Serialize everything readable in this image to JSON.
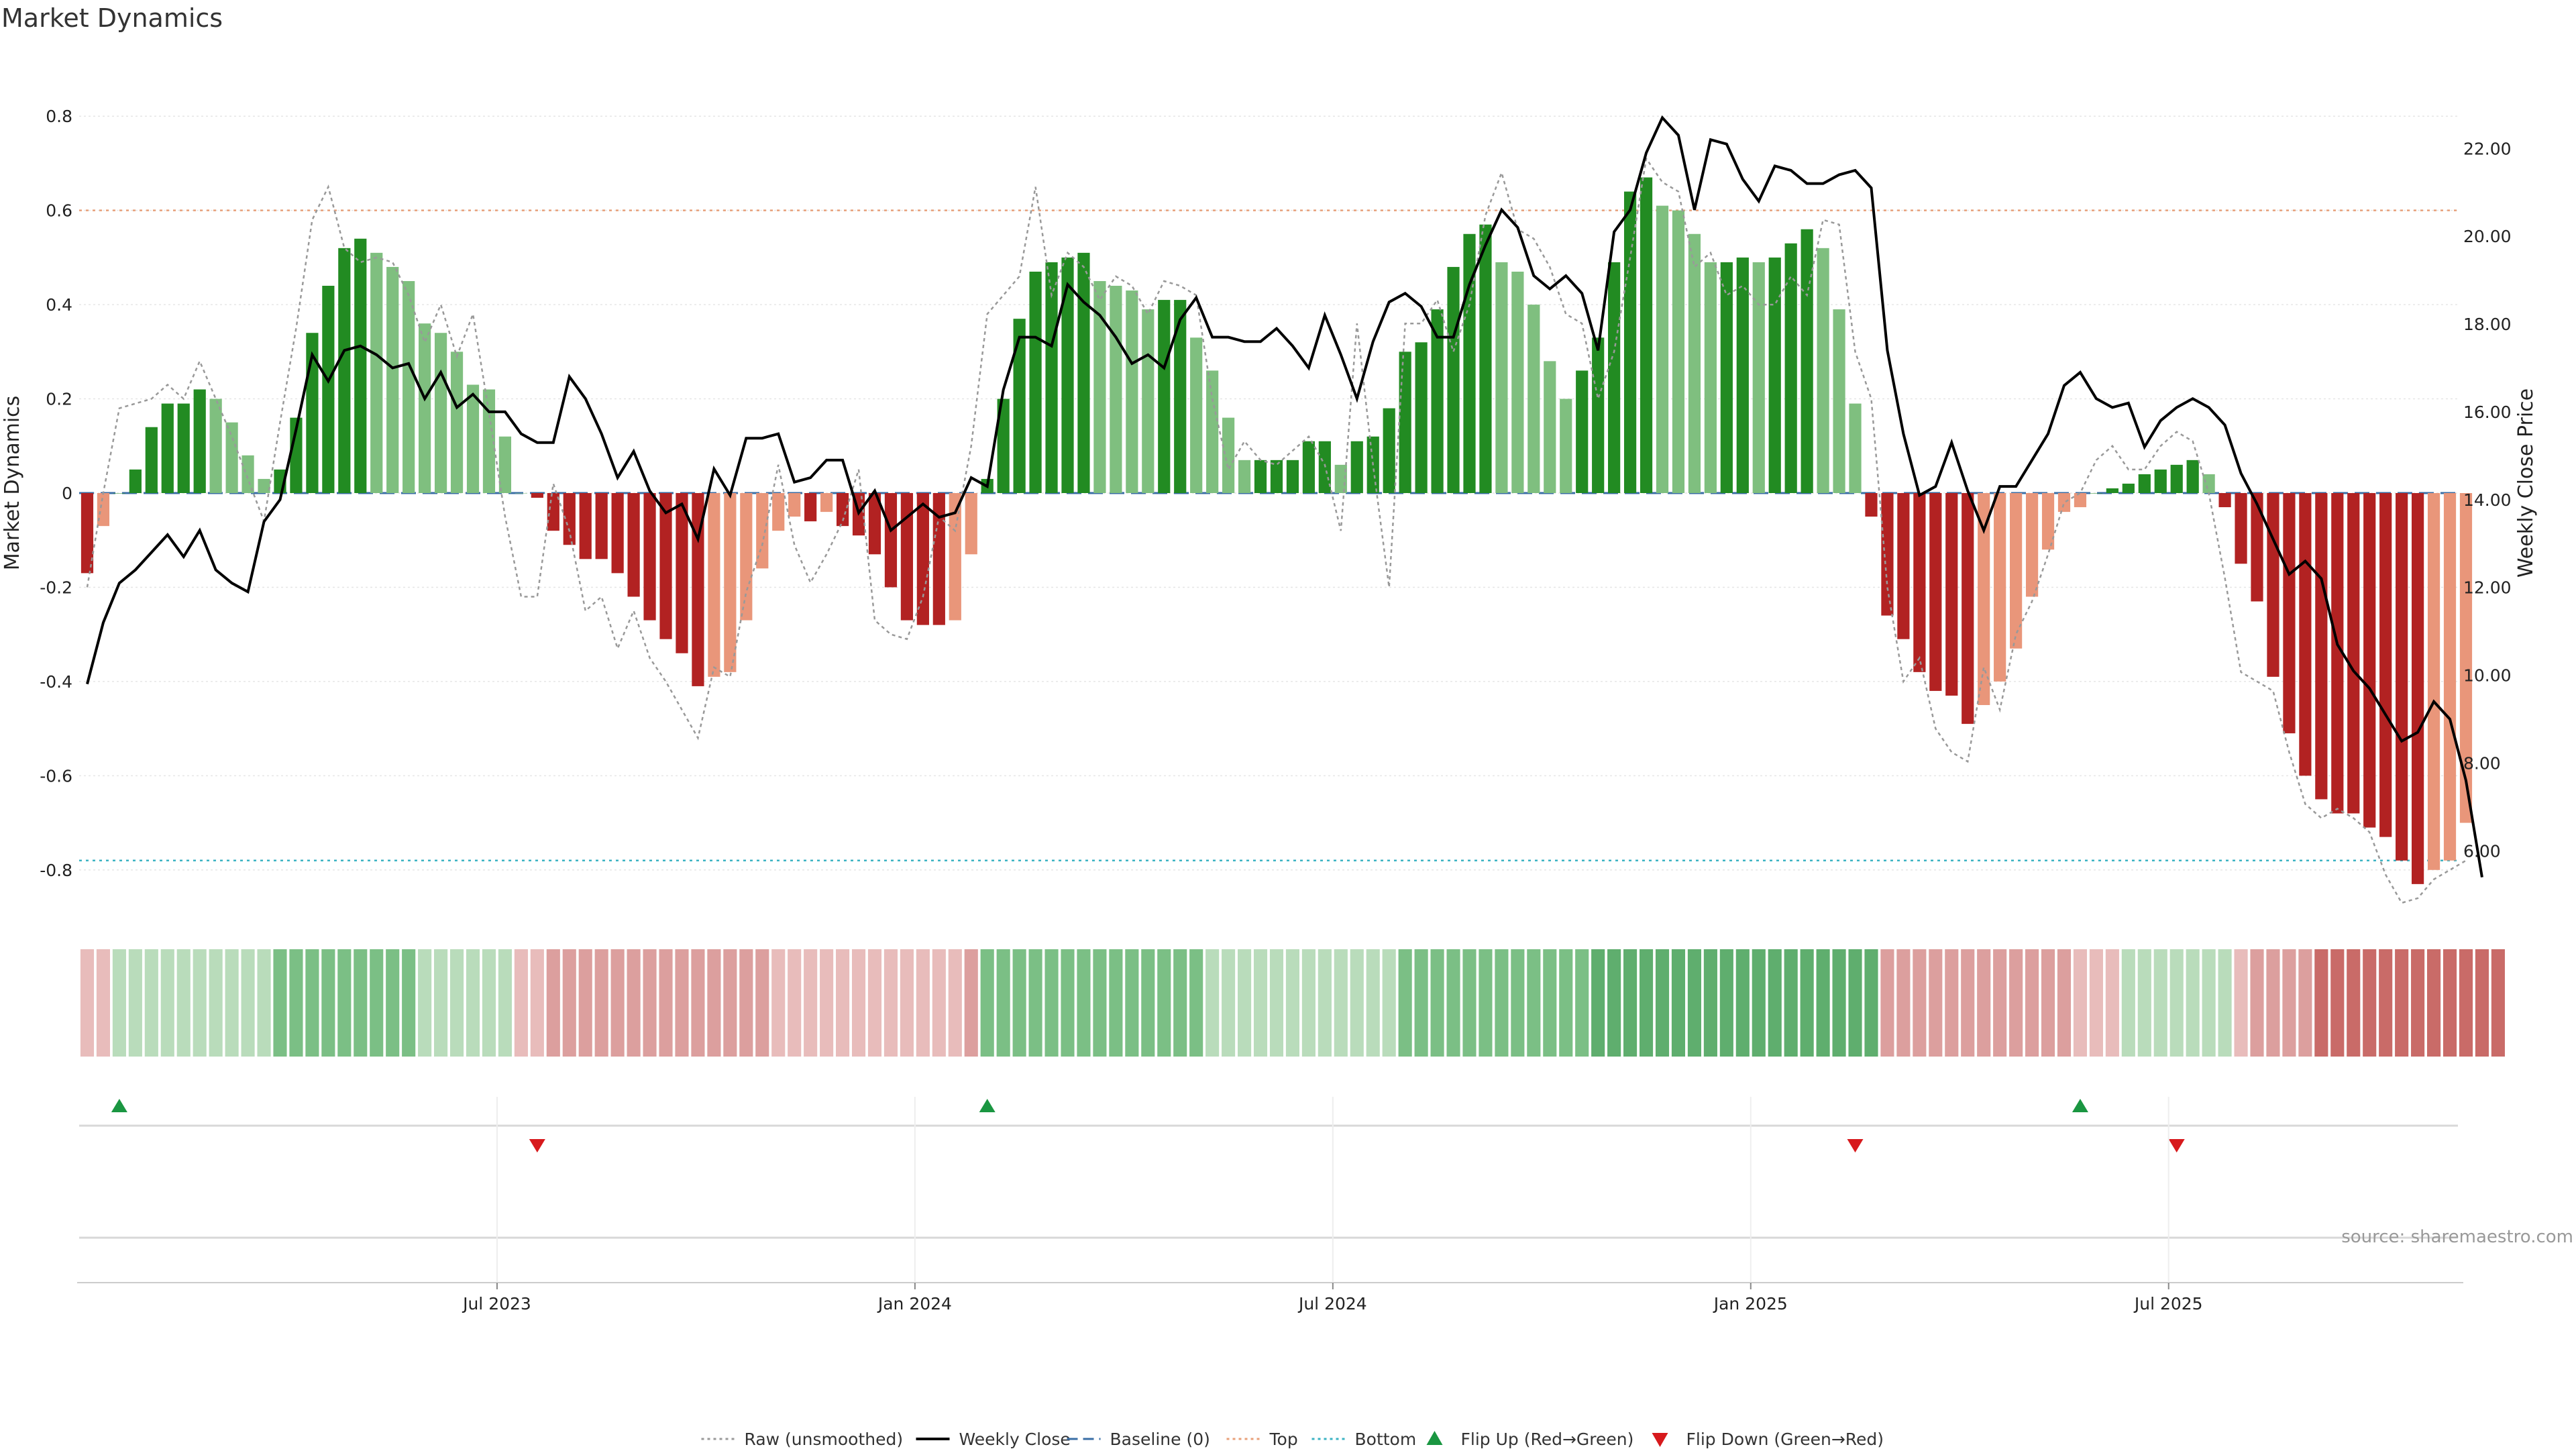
{
  "chart_data": {
    "type": "bar",
    "title": "Market Dynamics",
    "ylabel_left": "Market Dynamics",
    "ylabel_right": "Weekly Close Price",
    "source": "source: sharemaestro.com",
    "left_ylim": [
      -0.89,
      0.89
    ],
    "right_ylim": [
      4.6,
      23.7
    ],
    "left_yticks": [
      "0.8",
      "0.6",
      "0.4",
      "0.2",
      "0",
      "-0.2",
      "-0.4",
      "-0.6",
      "-0.8"
    ],
    "left_ytick_values": [
      0.8,
      0.6,
      0.4,
      0.2,
      0,
      -0.2,
      -0.4,
      -0.6,
      -0.8
    ],
    "right_yticks": [
      "22.00",
      "20.00",
      "18.00",
      "16.00",
      "14.00",
      "12.00",
      "10.00",
      "8.00",
      "6.00"
    ],
    "right_ytick_values": [
      22,
      20,
      18,
      16,
      14,
      12,
      10,
      8,
      6
    ],
    "x_ticks": [
      "Jul 2023",
      "Jan 2024",
      "Jul 2024",
      "Jan 2025",
      "Jul 2025"
    ],
    "x_tick_weeks": [
      26,
      52,
      78,
      104,
      130
    ],
    "reference_lines": {
      "top": 0.6,
      "bottom": -0.78,
      "baseline": 0
    },
    "grid": true,
    "legend_position": "bottom-center",
    "weeks": 148,
    "series": [
      {
        "name": "Market Dynamics",
        "kind": "bar",
        "values": [
          -0.17,
          -0.07,
          0.0,
          0.05,
          0.14,
          0.19,
          0.19,
          0.22,
          0.2,
          0.15,
          0.08,
          0.03,
          0.05,
          0.16,
          0.34,
          0.44,
          0.52,
          0.54,
          0.51,
          0.48,
          0.45,
          0.36,
          0.34,
          0.3,
          0.23,
          0.22,
          0.12,
          0.0,
          -0.01,
          -0.08,
          -0.11,
          -0.14,
          -0.14,
          -0.17,
          -0.22,
          -0.27,
          -0.31,
          -0.34,
          -0.41,
          -0.39,
          -0.38,
          -0.27,
          -0.16,
          -0.08,
          -0.05,
          -0.06,
          -0.04,
          -0.07,
          -0.09,
          -0.13,
          -0.2,
          -0.27,
          -0.28,
          -0.28,
          -0.27,
          -0.13,
          0.03,
          0.2,
          0.37,
          0.47,
          0.49,
          0.5,
          0.51,
          0.45,
          0.44,
          0.43,
          0.39,
          0.41,
          0.41,
          0.33,
          0.26,
          0.16,
          0.07,
          0.07,
          0.07,
          0.07,
          0.11,
          0.11,
          0.06,
          0.11,
          0.12,
          0.18,
          0.3,
          0.32,
          0.39,
          0.48,
          0.55,
          0.57,
          0.49,
          0.47,
          0.4,
          0.28,
          0.2,
          0.26,
          0.33,
          0.49,
          0.64,
          0.67,
          0.61,
          0.6,
          0.55,
          0.49,
          0.49,
          0.5,
          0.49,
          0.5,
          0.53,
          0.56,
          0.52,
          0.39,
          0.19,
          -0.05,
          -0.26,
          -0.31,
          -0.38,
          -0.42,
          -0.43,
          -0.49,
          -0.45,
          -0.4,
          -0.33,
          -0.22,
          -0.12,
          -0.04,
          -0.03,
          0.0,
          0.01,
          0.02,
          0.04,
          0.05,
          0.06,
          0.07,
          0.04,
          -0.03,
          -0.15,
          -0.23,
          -0.39,
          -0.51,
          -0.6,
          -0.65,
          -0.68,
          -0.68,
          -0.71,
          -0.73,
          -0.78,
          -0.83,
          -0.8,
          -0.78,
          -0.7
        ]
      },
      {
        "name": "Raw (unsmoothed)",
        "kind": "line",
        "values": [
          -0.2,
          0.0,
          0.18,
          0.19,
          0.2,
          0.23,
          0.2,
          0.28,
          0.2,
          0.12,
          0.03,
          -0.06,
          0.15,
          0.35,
          0.58,
          0.65,
          0.52,
          0.49,
          0.5,
          0.49,
          0.42,
          0.32,
          0.4,
          0.29,
          0.38,
          0.17,
          -0.05,
          -0.22,
          -0.22,
          0.02,
          -0.08,
          -0.25,
          -0.22,
          -0.33,
          -0.25,
          -0.35,
          -0.4,
          -0.46,
          -0.52,
          -0.37,
          -0.39,
          -0.21,
          -0.11,
          0.06,
          -0.11,
          -0.19,
          -0.13,
          -0.06,
          0.05,
          -0.27,
          -0.3,
          -0.31,
          -0.22,
          -0.05,
          -0.08,
          0.1,
          0.38,
          0.42,
          0.46,
          0.65,
          0.42,
          0.51,
          0.48,
          0.41,
          0.46,
          0.44,
          0.38,
          0.45,
          0.44,
          0.42,
          0.2,
          0.05,
          0.11,
          0.07,
          0.06,
          0.09,
          0.12,
          0.06,
          -0.08,
          0.36,
          0.06,
          -0.2,
          0.36,
          0.36,
          0.41,
          0.3,
          0.4,
          0.59,
          0.68,
          0.56,
          0.54,
          0.48,
          0.38,
          0.36,
          0.2,
          0.3,
          0.5,
          0.71,
          0.66,
          0.64,
          0.48,
          0.51,
          0.42,
          0.44,
          0.4,
          0.4,
          0.46,
          0.42,
          0.58,
          0.57,
          0.3,
          0.2,
          -0.2,
          -0.4,
          -0.35,
          -0.5,
          -0.55,
          -0.57,
          -0.37,
          -0.46,
          -0.3,
          -0.23,
          -0.13,
          -0.02,
          0.0,
          0.07,
          0.1,
          0.05,
          0.05,
          0.1,
          0.13,
          0.11,
          0.0,
          -0.18,
          -0.38,
          -0.4,
          -0.42,
          -0.55,
          -0.66,
          -0.69,
          -0.67,
          -0.69,
          -0.72,
          -0.81,
          -0.87,
          -0.86,
          -0.82,
          -0.8,
          -0.78
        ]
      },
      {
        "name": "Weekly Close",
        "kind": "line",
        "axis": "right",
        "values": [
          9.8,
          11.2,
          12.1,
          12.4,
          12.8,
          13.2,
          12.7,
          13.3,
          12.4,
          12.1,
          11.9,
          13.5,
          14.0,
          15.6,
          17.3,
          16.7,
          17.4,
          17.5,
          17.3,
          17.0,
          17.1,
          16.3,
          16.9,
          16.1,
          16.4,
          16.0,
          16.0,
          15.5,
          15.3,
          15.3,
          16.8,
          16.3,
          15.5,
          14.5,
          15.1,
          14.2,
          13.7,
          13.9,
          13.1,
          14.7,
          14.1,
          15.4,
          15.4,
          15.5,
          14.4,
          14.5,
          14.9,
          14.9,
          13.7,
          14.2,
          13.3,
          13.6,
          13.9,
          13.6,
          13.7,
          14.5,
          14.3,
          16.5,
          17.7,
          17.7,
          17.5,
          18.9,
          18.5,
          18.2,
          17.7,
          17.1,
          17.3,
          17.0,
          18.1,
          18.6,
          17.7,
          17.7,
          17.6,
          17.6,
          17.9,
          17.5,
          17.0,
          18.2,
          17.3,
          16.3,
          17.6,
          18.5,
          18.7,
          18.4,
          17.7,
          17.7,
          18.9,
          19.8,
          20.6,
          20.2,
          19.1,
          18.8,
          19.1,
          18.7,
          17.4,
          20.1,
          20.6,
          21.9,
          22.7,
          22.3,
          20.6,
          22.2,
          22.1,
          21.3,
          20.8,
          21.6,
          21.5,
          21.2,
          21.2,
          21.4,
          21.5,
          21.1,
          17.4,
          15.5,
          14.1,
          14.3,
          15.3,
          14.2,
          13.3,
          14.3,
          14.3,
          14.9,
          15.5,
          16.6,
          16.9,
          16.3,
          16.1,
          16.2,
          15.2,
          15.8,
          16.1,
          16.3,
          16.1,
          15.7,
          14.6,
          13.9,
          13.1,
          12.3,
          12.6,
          12.2,
          10.7,
          10.1,
          9.7,
          9.1,
          8.5,
          8.7,
          9.4,
          9.0,
          7.6,
          5.4
        ]
      }
    ],
    "regime_strip_levels": [
      -1,
      -1,
      1,
      1,
      1,
      1,
      1,
      1,
      1,
      1,
      1,
      1,
      2,
      2,
      2,
      2,
      2,
      2,
      2,
      2,
      2,
      1,
      1,
      1,
      1,
      1,
      1,
      -1,
      -1,
      -2,
      -2,
      -2,
      -2,
      -2,
      -2,
      -2,
      -2,
      -2,
      -2,
      -2,
      -2,
      -2,
      -2,
      -1,
      -1,
      -1,
      -1,
      -1,
      -1,
      -1,
      -1,
      -1,
      -1,
      -1,
      -1,
      -2,
      2,
      2,
      2,
      2,
      2,
      2,
      2,
      2,
      2,
      2,
      2,
      2,
      2,
      2,
      1,
      1,
      1,
      1,
      1,
      1,
      1,
      1,
      1,
      1,
      1,
      1,
      2,
      2,
      2,
      2,
      2,
      2,
      2,
      2,
      2,
      2,
      2,
      2,
      3,
      3,
      3,
      3,
      3,
      3,
      3,
      3,
      3,
      3,
      3,
      3,
      3,
      3,
      3,
      3,
      3,
      3,
      -2,
      -2,
      -2,
      -2,
      -2,
      -2,
      -2,
      -2,
      -2,
      -2,
      -2,
      -2,
      -1,
      -1,
      -1,
      1,
      1,
      1,
      1,
      1,
      1,
      1,
      -1,
      -2,
      -2,
      -2,
      -2,
      -3,
      -3,
      -3,
      -3,
      -3,
      -3,
      -3,
      -3,
      -3,
      -3,
      -3,
      -3
    ],
    "flip_up_weeks": [
      2,
      56,
      124
    ],
    "flip_down_weeks": [
      28,
      110,
      130
    ],
    "legend": [
      {
        "label": "Raw (unsmoothed)",
        "style": "dotted",
        "color": "#999999"
      },
      {
        "label": "Weekly Close",
        "style": "solid",
        "color": "#000000"
      },
      {
        "label": "Baseline (0)",
        "style": "dashed",
        "color": "#3a6ea5"
      },
      {
        "label": "Top",
        "style": "dotted",
        "color": "#e8a07a"
      },
      {
        "label": "Bottom",
        "style": "dotted",
        "color": "#3bb3c3"
      },
      {
        "label": "Flip Up (Red→Green)",
        "style": "triangle-up",
        "color": "#1a9641"
      },
      {
        "label": "Flip Down (Green→Red)",
        "style": "triangle-down",
        "color": "#d7191c"
      }
    ],
    "colors": {
      "bar_green_strong": "#228b22",
      "bar_green_light": "#7fbf7f",
      "bar_red_strong": "#b22222",
      "bar_red_light": "#e9967a",
      "flip_up": "#1a9641",
      "flip_down": "#d7191c"
    }
  }
}
